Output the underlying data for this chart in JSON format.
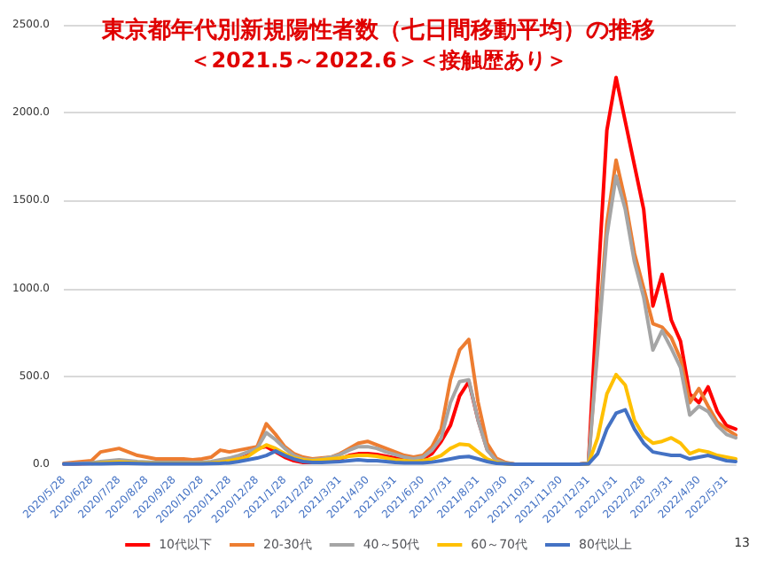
{
  "chart_data": {
    "type": "line",
    "title": "東京都年代別新規陽性者数（七日間移動平均）の推移",
    "subtitle": "＜2021.5～2022.6＞＜接触歴あり＞",
    "categories": [
      "2020/5/28",
      null,
      null,
      "2020/6/28",
      null,
      null,
      "2020/7/28",
      null,
      null,
      "2020/8/28",
      null,
      null,
      "2020/9/28",
      null,
      null,
      "2020/10/28",
      null,
      null,
      "2020/11/28",
      null,
      null,
      "2020/12/28",
      null,
      null,
      "2021/1/28",
      null,
      null,
      "2021/2/28",
      null,
      null,
      "2021/3/31",
      null,
      null,
      "2021/4/30",
      null,
      null,
      "2021/5/31",
      null,
      null,
      "2021/6/30",
      null,
      null,
      "2021/7/31",
      null,
      null,
      "2021/8/31",
      null,
      null,
      "2021/9/30",
      null,
      null,
      "2021/10/31",
      null,
      null,
      "2021/11/30",
      null,
      null,
      "2021/12/31",
      null,
      null,
      "2022/1/31",
      null,
      null,
      "2022/2/28",
      null,
      null,
      "2022/3/31",
      null,
      null,
      "2022/4/30",
      null,
      null,
      "2022/5/31",
      null
    ],
    "series": [
      {
        "name": "10代以下",
        "color": "#ff0000",
        "values": [
          2,
          3,
          4,
          5,
          8,
          10,
          10,
          8,
          6,
          5,
          5,
          5,
          5,
          5,
          5,
          5,
          8,
          10,
          15,
          30,
          50,
          90,
          100,
          70,
          40,
          20,
          10,
          10,
          15,
          20,
          30,
          50,
          60,
          60,
          55,
          45,
          35,
          25,
          20,
          30,
          60,
          130,
          220,
          389,
          470,
          253,
          84,
          20,
          5,
          0,
          0,
          0,
          0,
          0,
          0,
          0,
          0,
          5,
          1000,
          1900,
          2200,
          1950,
          1700,
          1450,
          900,
          1080,
          820,
          700,
          400,
          350,
          440,
          300,
          220,
          200
        ]
      },
      {
        "name": "20-30代",
        "color": "#ed7d31",
        "values": [
          5,
          10,
          15,
          20,
          70,
          80,
          90,
          70,
          50,
          40,
          30,
          30,
          30,
          30,
          25,
          30,
          40,
          80,
          70,
          80,
          90,
          100,
          230,
          170,
          100,
          60,
          40,
          30,
          35,
          40,
          60,
          90,
          120,
          130,
          110,
          90,
          70,
          50,
          40,
          50,
          100,
          200,
          480,
          650,
          710,
          355,
          118,
          34,
          10,
          0,
          0,
          0,
          0,
          0,
          0,
          0,
          0,
          5,
          690,
          1370,
          1730,
          1500,
          1200,
          1000,
          800,
          780,
          720,
          600,
          350,
          430,
          330,
          240,
          200,
          165
        ]
      },
      {
        "name": "40～50代",
        "color": "#a5a5a5",
        "values": [
          2,
          3,
          5,
          8,
          15,
          20,
          25,
          20,
          15,
          12,
          10,
          10,
          10,
          10,
          10,
          10,
          15,
          25,
          35,
          50,
          70,
          90,
          180,
          140,
          90,
          50,
          30,
          25,
          30,
          40,
          55,
          80,
          100,
          100,
          90,
          70,
          55,
          40,
          30,
          40,
          80,
          150,
          350,
          470,
          480,
          250,
          80,
          20,
          5,
          0,
          0,
          0,
          0,
          0,
          0,
          0,
          0,
          5,
          650,
          1300,
          1640,
          1450,
          1150,
          950,
          650,
          760,
          660,
          550,
          280,
          330,
          300,
          220,
          170,
          150
        ]
      },
      {
        "name": "60～70代",
        "color": "#ffc000",
        "values": [
          null,
          null,
          null,
          4,
          8,
          10,
          12,
          10,
          8,
          6,
          5,
          5,
          5,
          5,
          5,
          5,
          8,
          12,
          20,
          30,
          45,
          80,
          110,
          90,
          60,
          35,
          25,
          20,
          25,
          30,
          35,
          45,
          50,
          50,
          45,
          35,
          25,
          20,
          15,
          20,
          30,
          50,
          90,
          115,
          110,
          70,
          30,
          10,
          3,
          0,
          0,
          0,
          0,
          0,
          0,
          0,
          0,
          3,
          150,
          400,
          510,
          450,
          250,
          160,
          120,
          130,
          150,
          120,
          60,
          80,
          70,
          50,
          40,
          30
        ]
      },
      {
        "name": "80代以上",
        "color": "#4472c4",
        "values": [
          1,
          1,
          2,
          2,
          3,
          4,
          5,
          5,
          4,
          3,
          3,
          3,
          3,
          3,
          3,
          3,
          4,
          5,
          8,
          15,
          25,
          35,
          50,
          75,
          50,
          30,
          15,
          10,
          10,
          12,
          15,
          20,
          25,
          20,
          20,
          15,
          10,
          8,
          8,
          8,
          12,
          20,
          30,
          40,
          44,
          30,
          15,
          5,
          2,
          0,
          0,
          0,
          0,
          0,
          0,
          0,
          0,
          2,
          60,
          200,
          290,
          310,
          200,
          120,
          70,
          60,
          50,
          50,
          30,
          40,
          50,
          35,
          20,
          15
        ]
      }
    ],
    "ylim": [
      0,
      2500
    ],
    "yticks": [
      {
        "value": 0,
        "label": "0.0"
      },
      {
        "value": 500,
        "label": "500.0"
      },
      {
        "value": 1000,
        "label": "1000.0"
      },
      {
        "value": 1500,
        "label": "1500.0"
      },
      {
        "value": 2000,
        "label": "2000.0"
      },
      {
        "value": 2500,
        "label": "2500.0"
      }
    ],
    "grid": "y",
    "legend": "bottom",
    "marker": "none",
    "line_style": "solid",
    "annotations": [
      "13"
    ]
  }
}
